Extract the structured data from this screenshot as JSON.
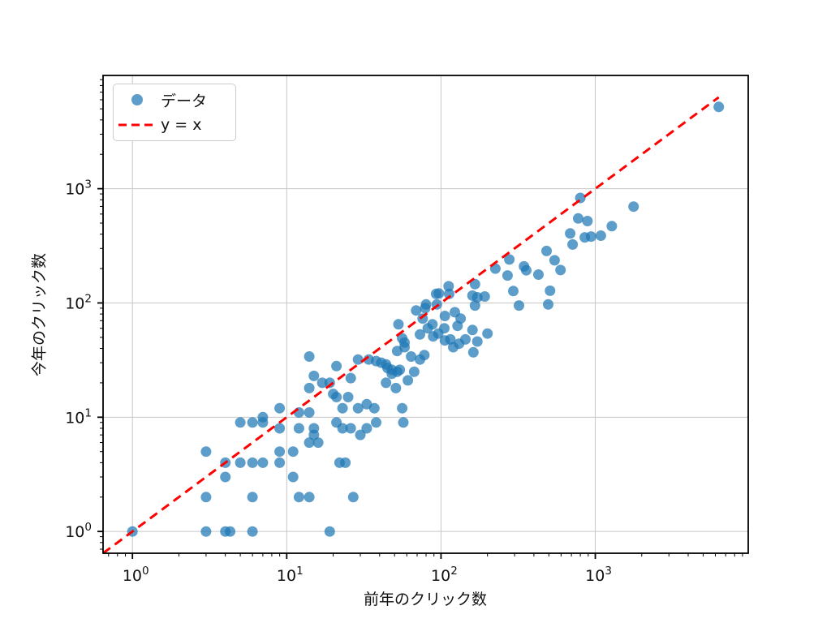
{
  "chart_data": {
    "type": "scatter",
    "title": "",
    "xlabel": "前年のクリック数",
    "ylabel": "今年のクリック数",
    "xscale": "log",
    "yscale": "log",
    "xlim": [
      0.645,
      9800
    ],
    "ylim": [
      0.645,
      9800
    ],
    "grid": true,
    "colors": {
      "scatter": "#1f77b4",
      "scatter_alpha": 0.72,
      "identity_line": "#ff0000",
      "gridline": "#c6c6c6",
      "spine": "#000000",
      "tick_label": "#111111"
    },
    "xticks": [
      {
        "value": 1,
        "base": "10",
        "exp": "0"
      },
      {
        "value": 10,
        "base": "10",
        "exp": "1"
      },
      {
        "value": 100,
        "base": "10",
        "exp": "2"
      },
      {
        "value": 1000,
        "base": "10",
        "exp": "3"
      }
    ],
    "yticks": [
      {
        "value": 1,
        "base": "10",
        "exp": "0"
      },
      {
        "value": 10,
        "base": "10",
        "exp": "1"
      },
      {
        "value": 100,
        "base": "10",
        "exp": "2"
      },
      {
        "value": 1000,
        "base": "10",
        "exp": "3"
      }
    ],
    "legend": {
      "position": "upper left",
      "entries": [
        {
          "label": "データ",
          "marker": "circle"
        },
        {
          "label": "y = x",
          "marker": "dashed-line"
        }
      ]
    },
    "series": [
      {
        "name": "データ",
        "type": "scatter",
        "points": [
          [
            1,
            1
          ],
          [
            3,
            1
          ],
          [
            4,
            1
          ],
          [
            4.3,
            1
          ],
          [
            6,
            1
          ],
          [
            19,
            1
          ],
          [
            3,
            2
          ],
          [
            6,
            2
          ],
          [
            12,
            2
          ],
          [
            14,
            2
          ],
          [
            27,
            2
          ],
          [
            4,
            3
          ],
          [
            11,
            3
          ],
          [
            4,
            4
          ],
          [
            5,
            4
          ],
          [
            6,
            4
          ],
          [
            7,
            4
          ],
          [
            9,
            4
          ],
          [
            22,
            4
          ],
          [
            24,
            4
          ],
          [
            3,
            5
          ],
          [
            9,
            5
          ],
          [
            11,
            5
          ],
          [
            14,
            6
          ],
          [
            16,
            6
          ],
          [
            15,
            7
          ],
          [
            30,
            7
          ],
          [
            9,
            8
          ],
          [
            12,
            8
          ],
          [
            15,
            8
          ],
          [
            23,
            8
          ],
          [
            26,
            8
          ],
          [
            33,
            8
          ],
          [
            5,
            9
          ],
          [
            6,
            9
          ],
          [
            7,
            9
          ],
          [
            21,
            9
          ],
          [
            38,
            9
          ],
          [
            57,
            9
          ],
          [
            7,
            10
          ],
          [
            12,
            11
          ],
          [
            14,
            11
          ],
          [
            9,
            12
          ],
          [
            23,
            12
          ],
          [
            29,
            12
          ],
          [
            33,
            13
          ],
          [
            37,
            12
          ],
          [
            56,
            12
          ],
          [
            21,
            15
          ],
          [
            25,
            15
          ],
          [
            20,
            16
          ],
          [
            14,
            18
          ],
          [
            51,
            18
          ],
          [
            17,
            20
          ],
          [
            19,
            20
          ],
          [
            44,
            20
          ],
          [
            61,
            21
          ],
          [
            26,
            22
          ],
          [
            15,
            23
          ],
          [
            48,
            24
          ],
          [
            52,
            25
          ],
          [
            67,
            25
          ],
          [
            48,
            26
          ],
          [
            54,
            26
          ],
          [
            45,
            27
          ],
          [
            21,
            28
          ],
          [
            44,
            29
          ],
          [
            41,
            30
          ],
          [
            38,
            31
          ],
          [
            34,
            32
          ],
          [
            29,
            32
          ],
          [
            73,
            32
          ],
          [
            14,
            34
          ],
          [
            64,
            34
          ],
          [
            78,
            35
          ],
          [
            162,
            37
          ],
          [
            52,
            38
          ],
          [
            58,
            41
          ],
          [
            120,
            41
          ],
          [
            131,
            44
          ],
          [
            58,
            45
          ],
          [
            172,
            46
          ],
          [
            106,
            47
          ],
          [
            115,
            48
          ],
          [
            144,
            48
          ],
          [
            56,
            49
          ],
          [
            89,
            51
          ],
          [
            73,
            53
          ],
          [
            96,
            54
          ],
          [
            200,
            54
          ],
          [
            160,
            58
          ],
          [
            82,
            60
          ],
          [
            105,
            60
          ],
          [
            128,
            63
          ],
          [
            53,
            65
          ],
          [
            88,
            65
          ],
          [
            76,
            73
          ],
          [
            134,
            73
          ],
          [
            106,
            77
          ],
          [
            123,
            83
          ],
          [
            69,
            86
          ],
          [
            79,
            90
          ],
          [
            320,
            95
          ],
          [
            166,
            95
          ],
          [
            80,
            97
          ],
          [
            94,
            97
          ],
          [
            495,
            97
          ],
          [
            172,
            112
          ],
          [
            192,
            114
          ],
          [
            160,
            116
          ],
          [
            93,
            120
          ],
          [
            113,
            120
          ],
          [
            97,
            121
          ],
          [
            294,
            127
          ],
          [
            509,
            128
          ],
          [
            112,
            140
          ],
          [
            166,
            146
          ],
          [
            270,
            174
          ],
          [
            428,
            177
          ],
          [
            357,
            193
          ],
          [
            595,
            194
          ],
          [
            225,
            200
          ],
          [
            345,
            209
          ],
          [
            545,
            236
          ],
          [
            277,
            240
          ],
          [
            483,
            285
          ],
          [
            713,
            325
          ],
          [
            855,
            375
          ],
          [
            940,
            381
          ],
          [
            1086,
            388
          ],
          [
            687,
            406
          ],
          [
            1280,
            470
          ],
          [
            890,
            521
          ],
          [
            775,
            549
          ],
          [
            1771,
            697
          ],
          [
            800,
            830
          ],
          [
            6310,
            5200
          ]
        ]
      },
      {
        "name": "y = x",
        "type": "line",
        "style": "dashed",
        "from": [
          0.645,
          0.645
        ],
        "to": [
          6310,
          6310
        ]
      }
    ]
  }
}
